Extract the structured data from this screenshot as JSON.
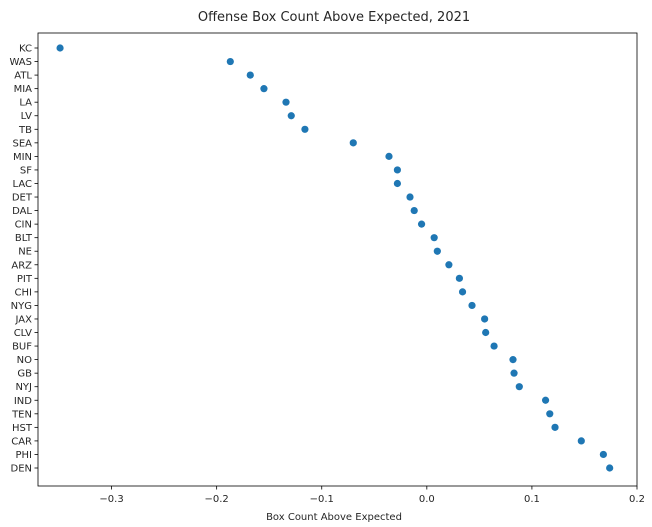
{
  "chart_data": {
    "type": "scatter",
    "title": "Offense Box Count Above Expected, 2021",
    "xlabel": "Box Count Above Expected",
    "ylabel": "",
    "xlim": [
      -0.37,
      0.2
    ],
    "xticks": [
      -0.3,
      -0.2,
      -0.1,
      0.0,
      0.1,
      0.2
    ],
    "xtick_labels": [
      "−0.3",
      "−0.2",
      "−0.1",
      "0.0",
      "0.1",
      "0.2"
    ],
    "grid": false,
    "legend": false,
    "marker_color": "#1f77b4",
    "points": [
      {
        "team": "KC",
        "x": -0.349
      },
      {
        "team": "WAS",
        "x": -0.187
      },
      {
        "team": "ATL",
        "x": -0.168
      },
      {
        "team": "MIA",
        "x": -0.155
      },
      {
        "team": "LA",
        "x": -0.134
      },
      {
        "team": "LV",
        "x": -0.129
      },
      {
        "team": "TB",
        "x": -0.116
      },
      {
        "team": "SEA",
        "x": -0.07
      },
      {
        "team": "MIN",
        "x": -0.036
      },
      {
        "team": "SF",
        "x": -0.028
      },
      {
        "team": "LAC",
        "x": -0.028
      },
      {
        "team": "DET",
        "x": -0.016
      },
      {
        "team": "DAL",
        "x": -0.012
      },
      {
        "team": "CIN",
        "x": -0.005
      },
      {
        "team": "BLT",
        "x": 0.007
      },
      {
        "team": "NE",
        "x": 0.01
      },
      {
        "team": "ARZ",
        "x": 0.021
      },
      {
        "team": "PIT",
        "x": 0.031
      },
      {
        "team": "CHI",
        "x": 0.034
      },
      {
        "team": "NYG",
        "x": 0.043
      },
      {
        "team": "JAX",
        "x": 0.055
      },
      {
        "team": "CLV",
        "x": 0.056
      },
      {
        "team": "BUF",
        "x": 0.064
      },
      {
        "team": "NO",
        "x": 0.082
      },
      {
        "team": "GB",
        "x": 0.083
      },
      {
        "team": "NYJ",
        "x": 0.088
      },
      {
        "team": "IND",
        "x": 0.113
      },
      {
        "team": "TEN",
        "x": 0.117
      },
      {
        "team": "HST",
        "x": 0.122
      },
      {
        "team": "CAR",
        "x": 0.147
      },
      {
        "team": "PHI",
        "x": 0.168
      },
      {
        "team": "DEN",
        "x": 0.174
      }
    ]
  }
}
